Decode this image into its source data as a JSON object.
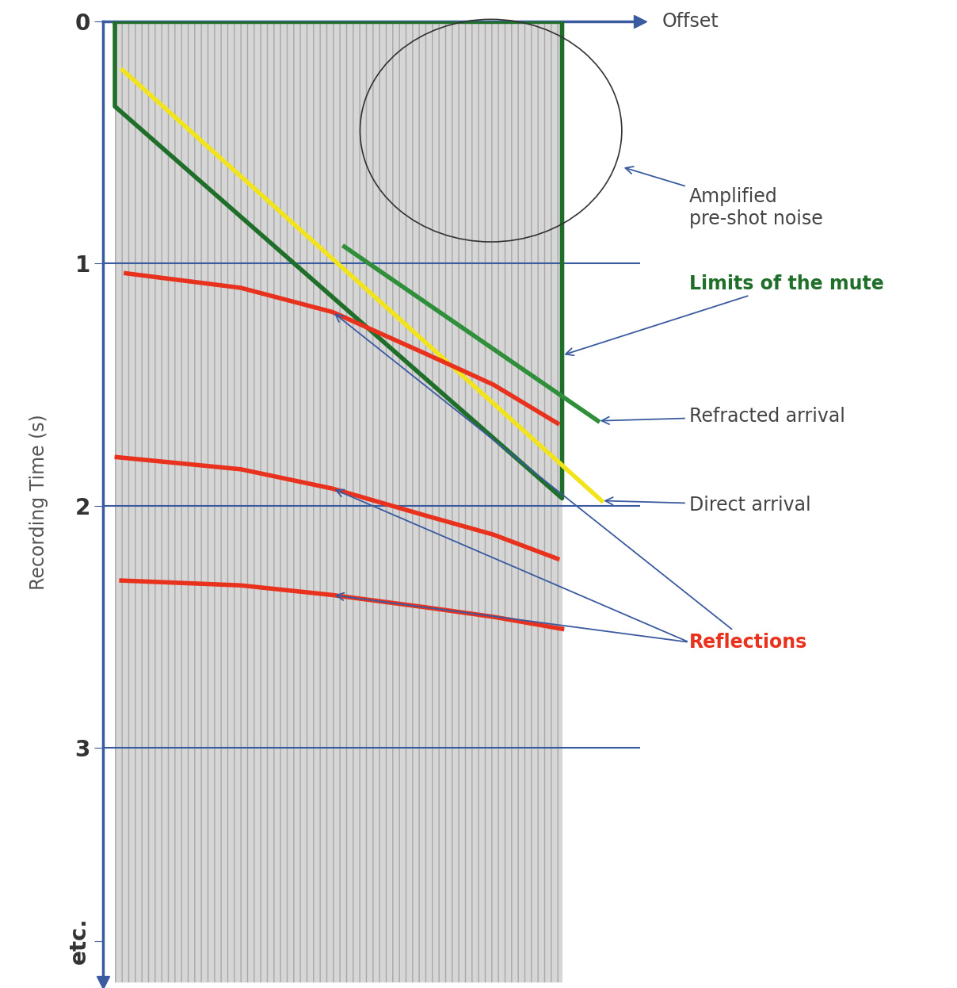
{
  "chart_data": {
    "type": "line",
    "x_label": "Offset",
    "y_label": "Recording Time (s)",
    "xlim": [
      0,
      1.17
    ],
    "xticks": [],
    "ylim": [
      3.97,
      0
    ],
    "yticks": [
      0,
      1,
      2,
      3,
      {
        "value": 3.8,
        "label": "etc."
      }
    ],
    "grid": true,
    "tick_labels": "y",
    "annotations": [
      "Amplified\npre-shot noise"
    ],
    "series": [
      {
        "name": "Limits of the mute",
        "color": "#1f6e2a",
        "x": [
          0.026,
          1.0,
          1.0,
          0.026,
          0.026
        ],
        "values": [
          0,
          0,
          1.97,
          0.35,
          0
        ]
      },
      {
        "name": "Refracted arrival",
        "color": "#2f8f3a",
        "x": [
          0.526,
          1.078
        ],
        "values": [
          0.93,
          1.65
        ]
      },
      {
        "name": "Direct arrival",
        "color": "#f2e41c",
        "x": [
          0.043,
          1.086
        ],
        "values": [
          0.2,
          1.98
        ]
      },
      {
        "name": "Reflections",
        "color": "#e8321e",
        "x": [
          0.05,
          0.3,
          0.5,
          0.7,
          0.85,
          0.99
        ],
        "values": [
          1.04,
          1.1,
          1.2,
          1.37,
          1.5,
          1.66
        ]
      },
      {
        "name": "Reflections",
        "color": "#e8321e",
        "x": [
          0.03,
          0.3,
          0.5,
          0.7,
          0.85,
          0.99
        ],
        "values": [
          1.8,
          1.85,
          1.93,
          2.04,
          2.12,
          2.22
        ]
      },
      {
        "name": "Reflections",
        "color": "#e8321e",
        "x": [
          0.04,
          0.3,
          0.5,
          0.7,
          0.85,
          1.0
        ],
        "values": [
          2.31,
          2.33,
          2.37,
          2.42,
          2.46,
          2.51
        ]
      }
    ]
  }
}
